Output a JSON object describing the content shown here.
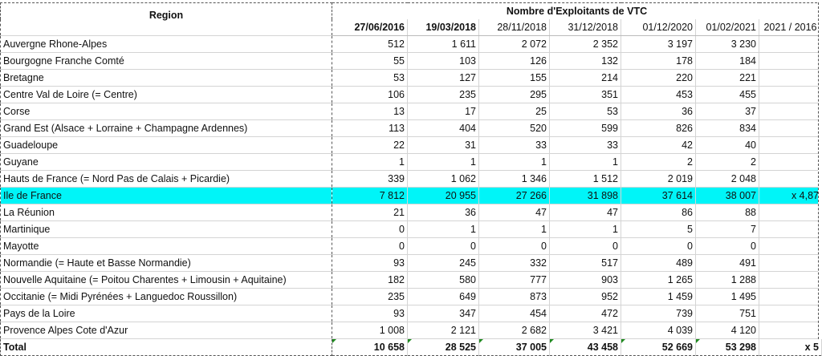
{
  "header": {
    "region_label": "Region",
    "group_label": "Nombre d'Exploitants de VTC",
    "dates": [
      "27/06/2016",
      "19/03/2018",
      "28/11/2018",
      "31/12/2018",
      "01/12/2020",
      "01/02/2021"
    ],
    "ratio_label": "2021 / 2016"
  },
  "rows": [
    {
      "region": "Auvergne Rhone-Alpes",
      "values": [
        "512",
        "1 611",
        "2 072",
        "2 352",
        "3 197",
        "3 230"
      ],
      "ratio": ""
    },
    {
      "region": "Bourgogne Franche Comté",
      "values": [
        "55",
        "103",
        "126",
        "132",
        "178",
        "184"
      ],
      "ratio": ""
    },
    {
      "region": "Bretagne",
      "values": [
        "53",
        "127",
        "155",
        "214",
        "220",
        "221"
      ],
      "ratio": ""
    },
    {
      "region": "Centre Val de Loire (= Centre)",
      "values": [
        "106",
        "235",
        "295",
        "351",
        "453",
        "455"
      ],
      "ratio": ""
    },
    {
      "region": "Corse",
      "values": [
        "13",
        "17",
        "25",
        "53",
        "36",
        "37"
      ],
      "ratio": ""
    },
    {
      "region": "Grand Est (Alsace + Lorraine + Champagne Ardennes)",
      "values": [
        "113",
        "404",
        "520",
        "599",
        "826",
        "834"
      ],
      "ratio": ""
    },
    {
      "region": "Guadeloupe",
      "values": [
        "22",
        "31",
        "33",
        "33",
        "42",
        "40"
      ],
      "ratio": ""
    },
    {
      "region": "Guyane",
      "values": [
        "1",
        "1",
        "1",
        "1",
        "2",
        "2"
      ],
      "ratio": ""
    },
    {
      "region": "Hauts de France (= Nord Pas de Calais + Picardie)",
      "values": [
        "339",
        "1 062",
        "1 346",
        "1 512",
        "2 019",
        "2 048"
      ],
      "ratio": ""
    },
    {
      "region": "Ile de France",
      "values": [
        "7 812",
        "20 955",
        "27 266",
        "31 898",
        "37 614",
        "38 007"
      ],
      "ratio": "x 4,87"
    },
    {
      "region": "La Réunion",
      "values": [
        "21",
        "36",
        "47",
        "47",
        "86",
        "88"
      ],
      "ratio": ""
    },
    {
      "region": "Martinique",
      "values": [
        "0",
        "1",
        "1",
        "1",
        "5",
        "7"
      ],
      "ratio": ""
    },
    {
      "region": "Mayotte",
      "values": [
        "0",
        "0",
        "0",
        "0",
        "0",
        "0"
      ],
      "ratio": ""
    },
    {
      "region": "Normandie (= Haute et Basse Normandie)",
      "values": [
        "93",
        "245",
        "332",
        "517",
        "489",
        "491"
      ],
      "ratio": ""
    },
    {
      "region": "Nouvelle Aquitaine (= Poitou Charentes + Limousin + Aquitaine)",
      "values": [
        "182",
        "580",
        "777",
        "903",
        "1 265",
        "1 288"
      ],
      "ratio": ""
    },
    {
      "region": "Occitanie (= Midi Pyrénées + Languedoc Roussillon)",
      "values": [
        "235",
        "649",
        "873",
        "952",
        "1 459",
        "1 495"
      ],
      "ratio": ""
    },
    {
      "region": "Pays de la Loire",
      "values": [
        "93",
        "347",
        "454",
        "472",
        "739",
        "751"
      ],
      "ratio": ""
    },
    {
      "region": "Provence Alpes Cote d'Azur",
      "values": [
        "1 008",
        "2 121",
        "2 682",
        "3 421",
        "4 039",
        "4 120"
      ],
      "ratio": ""
    }
  ],
  "total": {
    "region": "Total",
    "values": [
      "10 658",
      "28 525",
      "37 005",
      "43 458",
      "52 669",
      "53 298"
    ],
    "ratio": "x 5"
  },
  "colors": {
    "highlight": "#00f5f8",
    "error_marker": "#1f8a1f"
  }
}
